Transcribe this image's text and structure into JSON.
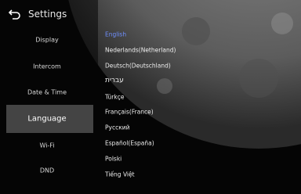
{
  "header": {
    "title": "Settings"
  },
  "menu": [
    "Display",
    "Intercom",
    "Date & Time",
    "Language",
    "Wi-Fi",
    "DND"
  ],
  "languages": [
    "English",
    "Nederlands(Netherland)",
    "Deutsch(Deutschland)",
    "עברית",
    "Türkçe",
    "Français(France)",
    "Русский",
    "Español(España)",
    "Polski",
    "Tiếng Việt"
  ]
}
